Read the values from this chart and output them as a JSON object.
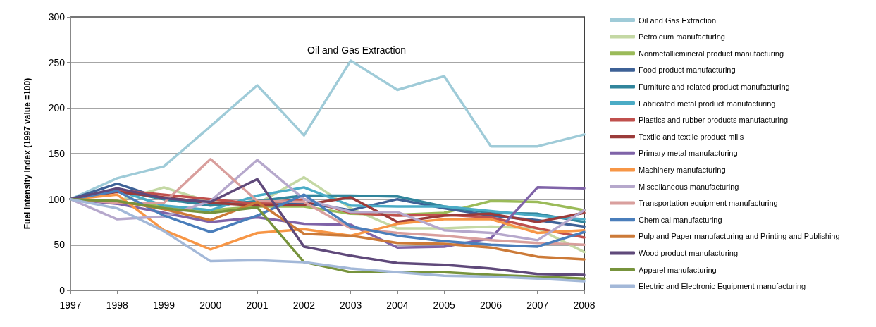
{
  "chart_data": {
    "type": "line",
    "ylabel": "Fuel Intensity Index (1997 value =100)",
    "categories": [
      "1997",
      "1998",
      "1999",
      "2000",
      "2001",
      "2002",
      "2003",
      "2004",
      "2005",
      "2006",
      "2007",
      "2008"
    ],
    "ylim": [
      0,
      300
    ],
    "yticks": [
      0,
      50,
      100,
      150,
      200,
      250,
      300
    ],
    "grid": "y",
    "legend": "right",
    "marker": "none",
    "line_style": "solid",
    "annotations": [
      "Oil and Gas Extraction"
    ],
    "series": [
      {
        "name": "Oil and Gas Extraction",
        "color": "#9fcbd8",
        "values": [
          100,
          123,
          136,
          180,
          225,
          170,
          252,
          220,
          235,
          158,
          158,
          171
        ]
      },
      {
        "name": "Petroleum manufacturing",
        "color": "#c4d8a4",
        "values": [
          100,
          98,
          113,
          97,
          95,
          124,
          90,
          68,
          68,
          70,
          68,
          42
        ]
      },
      {
        "name": "Nonmetallicmineral product manufacturing",
        "color": "#9bbb59",
        "values": [
          100,
          97,
          92,
          88,
          92,
          92,
          84,
          83,
          85,
          98,
          97,
          88
        ]
      },
      {
        "name": "Food product manufacturing",
        "color": "#3e6196",
        "values": [
          100,
          117,
          100,
          95,
          97,
          96,
          88,
          100,
          90,
          82,
          77,
          70
        ]
      },
      {
        "name": "Furniture and related product manufacturing",
        "color": "#31859c",
        "values": [
          100,
          110,
          100,
          93,
          98,
          104,
          104,
          103,
          92,
          85,
          84,
          75
        ]
      },
      {
        "name": "Fabricated metal product manufacturing",
        "color": "#4bacc6",
        "values": [
          100,
          110,
          93,
          88,
          104,
          113,
          93,
          92,
          92,
          87,
          82,
          78
        ]
      },
      {
        "name": "Plastics and rubber products manufacturing",
        "color": "#c0504d",
        "values": [
          100,
          110,
          105,
          100,
          95,
          100,
          85,
          82,
          83,
          80,
          68,
          58
        ]
      },
      {
        "name": "Textile and textile product mills",
        "color": "#9b3b3a",
        "values": [
          100,
          108,
          102,
          96,
          93,
          94,
          102,
          75,
          82,
          84,
          75,
          85
        ]
      },
      {
        "name": "Primary metal manufacturing",
        "color": "#7f63a8",
        "values": [
          100,
          95,
          85,
          75,
          80,
          73,
          72,
          47,
          48,
          57,
          113,
          112
        ]
      },
      {
        "name": "Machinery manufacturing",
        "color": "#f79646",
        "values": [
          100,
          105,
          66,
          45,
          63,
          67,
          60,
          73,
          78,
          78,
          63,
          66
        ]
      },
      {
        "name": "Miscellaneous manufacturing",
        "color": "#b6a8cc",
        "values": [
          100,
          78,
          81,
          98,
          143,
          100,
          86,
          86,
          66,
          63,
          55,
          88
        ]
      },
      {
        "name": "Transportation equipment manufacturing",
        "color": "#d99f9d",
        "values": [
          100,
          96,
          96,
          144,
          98,
          97,
          68,
          63,
          60,
          55,
          52,
          50
        ]
      },
      {
        "name": "Chemical manufacturing",
        "color": "#4a7ebb",
        "values": [
          100,
          109,
          82,
          64,
          82,
          105,
          70,
          60,
          54,
          50,
          48,
          64
        ]
      },
      {
        "name": "Pulp and Paper manufacturing and Printing and Publishing",
        "color": "#cc7a38",
        "values": [
          100,
          98,
          89,
          77,
          97,
          62,
          60,
          52,
          51,
          47,
          37,
          34
        ]
      },
      {
        "name": "Wood product manufacturing",
        "color": "#5f497a",
        "values": [
          100,
          112,
          101,
          97,
          122,
          48,
          38,
          30,
          28,
          24,
          18,
          17
        ]
      },
      {
        "name": "Apparel manufacturing",
        "color": "#77933c",
        "values": [
          100,
          98,
          90,
          85,
          91,
          31,
          20,
          20,
          20,
          17,
          15,
          13
        ]
      },
      {
        "name": "Electric and Electronic Equipment manufacturing",
        "color": "#a3b8d8",
        "values": [
          100,
          90,
          65,
          32,
          33,
          31,
          24,
          20,
          16,
          15,
          13,
          10
        ]
      }
    ]
  }
}
